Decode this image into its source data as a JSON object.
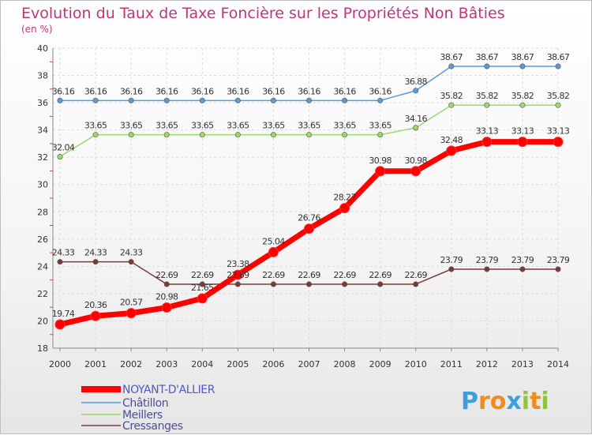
{
  "chart_data": {
    "type": "line",
    "title": "Evolution du Taux de Taxe Foncière sur les Propriétés Non Bâties",
    "subtitle": "(en %)",
    "xlabel": "",
    "ylabel": "(en %)",
    "x": [
      "2000",
      "2001",
      "2002",
      "2003",
      "2004",
      "2005",
      "2006",
      "2007",
      "2008",
      "2009",
      "2010",
      "2011",
      "2012",
      "2013",
      "2014"
    ],
    "ylim": [
      18,
      40
    ],
    "yticks": [
      18,
      20,
      22,
      24,
      26,
      28,
      30,
      32,
      34,
      36,
      38,
      40
    ],
    "legend_position": "bottom-left",
    "series": [
      {
        "name": "NOYANT-D'ALLIER",
        "color": "#ff0000",
        "values": [
          19.74,
          20.36,
          20.57,
          20.98,
          21.65,
          23.38,
          25.04,
          26.76,
          28.27,
          30.98,
          30.98,
          32.48,
          33.13,
          33.13,
          33.13
        ],
        "labels": [
          "19.74",
          "20.36",
          "20.57",
          "20.98",
          "21.65",
          "23.38",
          "25.04",
          "26.76",
          "28.27",
          "30.98",
          "30.98",
          "32.48",
          "33.13",
          "33.13",
          "33.13"
        ]
      },
      {
        "name": "Châtillon",
        "color": "#5b9bd5",
        "values": [
          36.16,
          36.16,
          36.16,
          36.16,
          36.16,
          36.16,
          36.16,
          36.16,
          36.16,
          36.16,
          36.88,
          38.67,
          38.67,
          38.67,
          38.67
        ],
        "labels": [
          "36.16",
          "36.16",
          "36.16",
          "36.16",
          "36.16",
          "36.16",
          "36.16",
          "36.16",
          "36.16",
          "36.16",
          "36.88",
          "38.67",
          "38.67",
          "38.67",
          "38.67"
        ]
      },
      {
        "name": "Meillers",
        "color": "#9ad96a",
        "values": [
          32.04,
          33.65,
          33.65,
          33.65,
          33.65,
          33.65,
          33.65,
          33.65,
          33.65,
          33.65,
          34.16,
          35.82,
          35.82,
          35.82,
          35.82
        ],
        "labels": [
          "32.04",
          "33.65",
          "33.65",
          "33.65",
          "33.65",
          "33.65",
          "33.65",
          "33.65",
          "33.65",
          "33.65",
          "34.16",
          "35.82",
          "35.82",
          "35.82",
          "35.82"
        ]
      },
      {
        "name": "Cressanges",
        "color": "#7b3a3a",
        "values": [
          24.33,
          24.33,
          24.33,
          22.69,
          22.69,
          22.69,
          22.69,
          22.69,
          22.69,
          22.69,
          22.69,
          23.79,
          23.79,
          23.79,
          23.79
        ],
        "labels": [
          "24.33",
          "24.33",
          "24.33",
          "22.69",
          "22.69",
          "22.69",
          "22.69",
          "22.69",
          "22.69",
          "22.69",
          "22.69",
          "23.79",
          "23.79",
          "23.79",
          "23.79"
        ]
      }
    ]
  },
  "logo": {
    "letters": [
      "P",
      "r",
      "o",
      "x",
      "i",
      "t",
      "i"
    ],
    "colors": [
      "#3aa0dc",
      "#f08c1e",
      "#f08c1e",
      "#3aa0dc",
      "#8cc63f",
      "#f08c1e",
      "#8cc63f"
    ]
  }
}
